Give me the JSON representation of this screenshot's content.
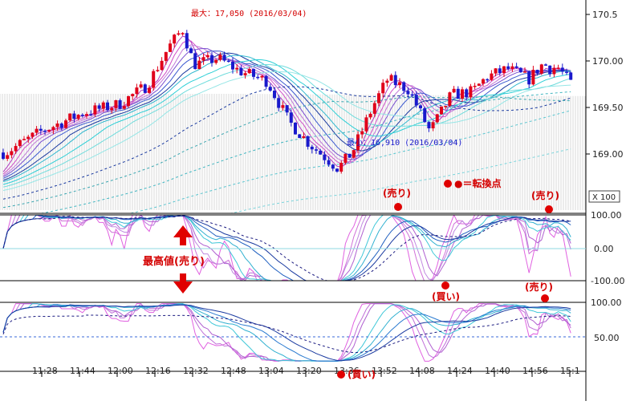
{
  "chart_data": [
    {
      "type": "candlestick",
      "panel": "price",
      "x_ticks": [
        "11:28",
        "11:44",
        "12:00",
        "12:16",
        "12:32",
        "12:48",
        "13:04",
        "13:20",
        "13:36",
        "13:52",
        "14:08",
        "14:24",
        "14:40",
        "14:56",
        "15:1"
      ],
      "y_ticks": [
        "170.5",
        "170.00",
        "169.50",
        "169.00"
      ],
      "ylim": [
        168.62,
        170.64
      ],
      "close_path": [
        [
          11.2,
          169.2
        ],
        [
          11.45,
          169.4
        ],
        [
          11.75,
          169.58
        ],
        [
          12.0,
          169.66
        ],
        [
          12.2,
          169.84
        ],
        [
          12.35,
          170.2
        ],
        [
          12.45,
          170.38
        ],
        [
          12.53,
          170.04
        ],
        [
          12.7,
          170.1
        ],
        [
          12.85,
          169.98
        ],
        [
          13.05,
          169.88
        ],
        [
          13.2,
          169.5
        ],
        [
          13.35,
          169.28
        ],
        [
          13.55,
          169.05
        ],
        [
          13.65,
          169.2
        ],
        [
          13.8,
          169.65
        ],
        [
          13.9,
          169.9
        ],
        [
          14.05,
          169.8
        ],
        [
          14.2,
          169.4
        ],
        [
          14.35,
          169.75
        ],
        [
          14.5,
          169.78
        ],
        [
          14.6,
          169.92
        ],
        [
          14.75,
          170.0
        ],
        [
          14.9,
          169.9
        ],
        [
          15.0,
          170.05
        ],
        [
          15.05,
          170.0
        ],
        [
          15.1,
          170.02
        ],
        [
          15.2,
          169.85
        ]
      ],
      "annotations": {
        "max_label": "最大：17,050 (2016/03/04)",
        "min_label": "最小：16,910 (2016/03/04)",
        "legend": "●＝転換点",
        "sell_1": "(売り)",
        "sell_2": "(売り)"
      },
      "corner_box": "X 100",
      "colors": {
        "bull": "#e0001a",
        "bear": "#1a1acc",
        "ma_dark": "#1a3aa0",
        "ma_light": "#2dcfd6",
        "ma_pink": "#d050c8"
      }
    },
    {
      "type": "line",
      "panel": "oscillator_1",
      "y_ticks": [
        "100.00",
        "0.00",
        "-100.00"
      ],
      "ylim": [
        -100,
        100
      ],
      "annotations": {
        "main": "最高値(売り)",
        "buy": "(買い)",
        "sell": "(売り)"
      }
    },
    {
      "type": "line",
      "panel": "oscillator_2",
      "y_ticks": [
        "100.00",
        "50.00"
      ],
      "ylim": [
        0,
        100
      ],
      "annotations": {
        "buy": "(買い)"
      }
    }
  ]
}
